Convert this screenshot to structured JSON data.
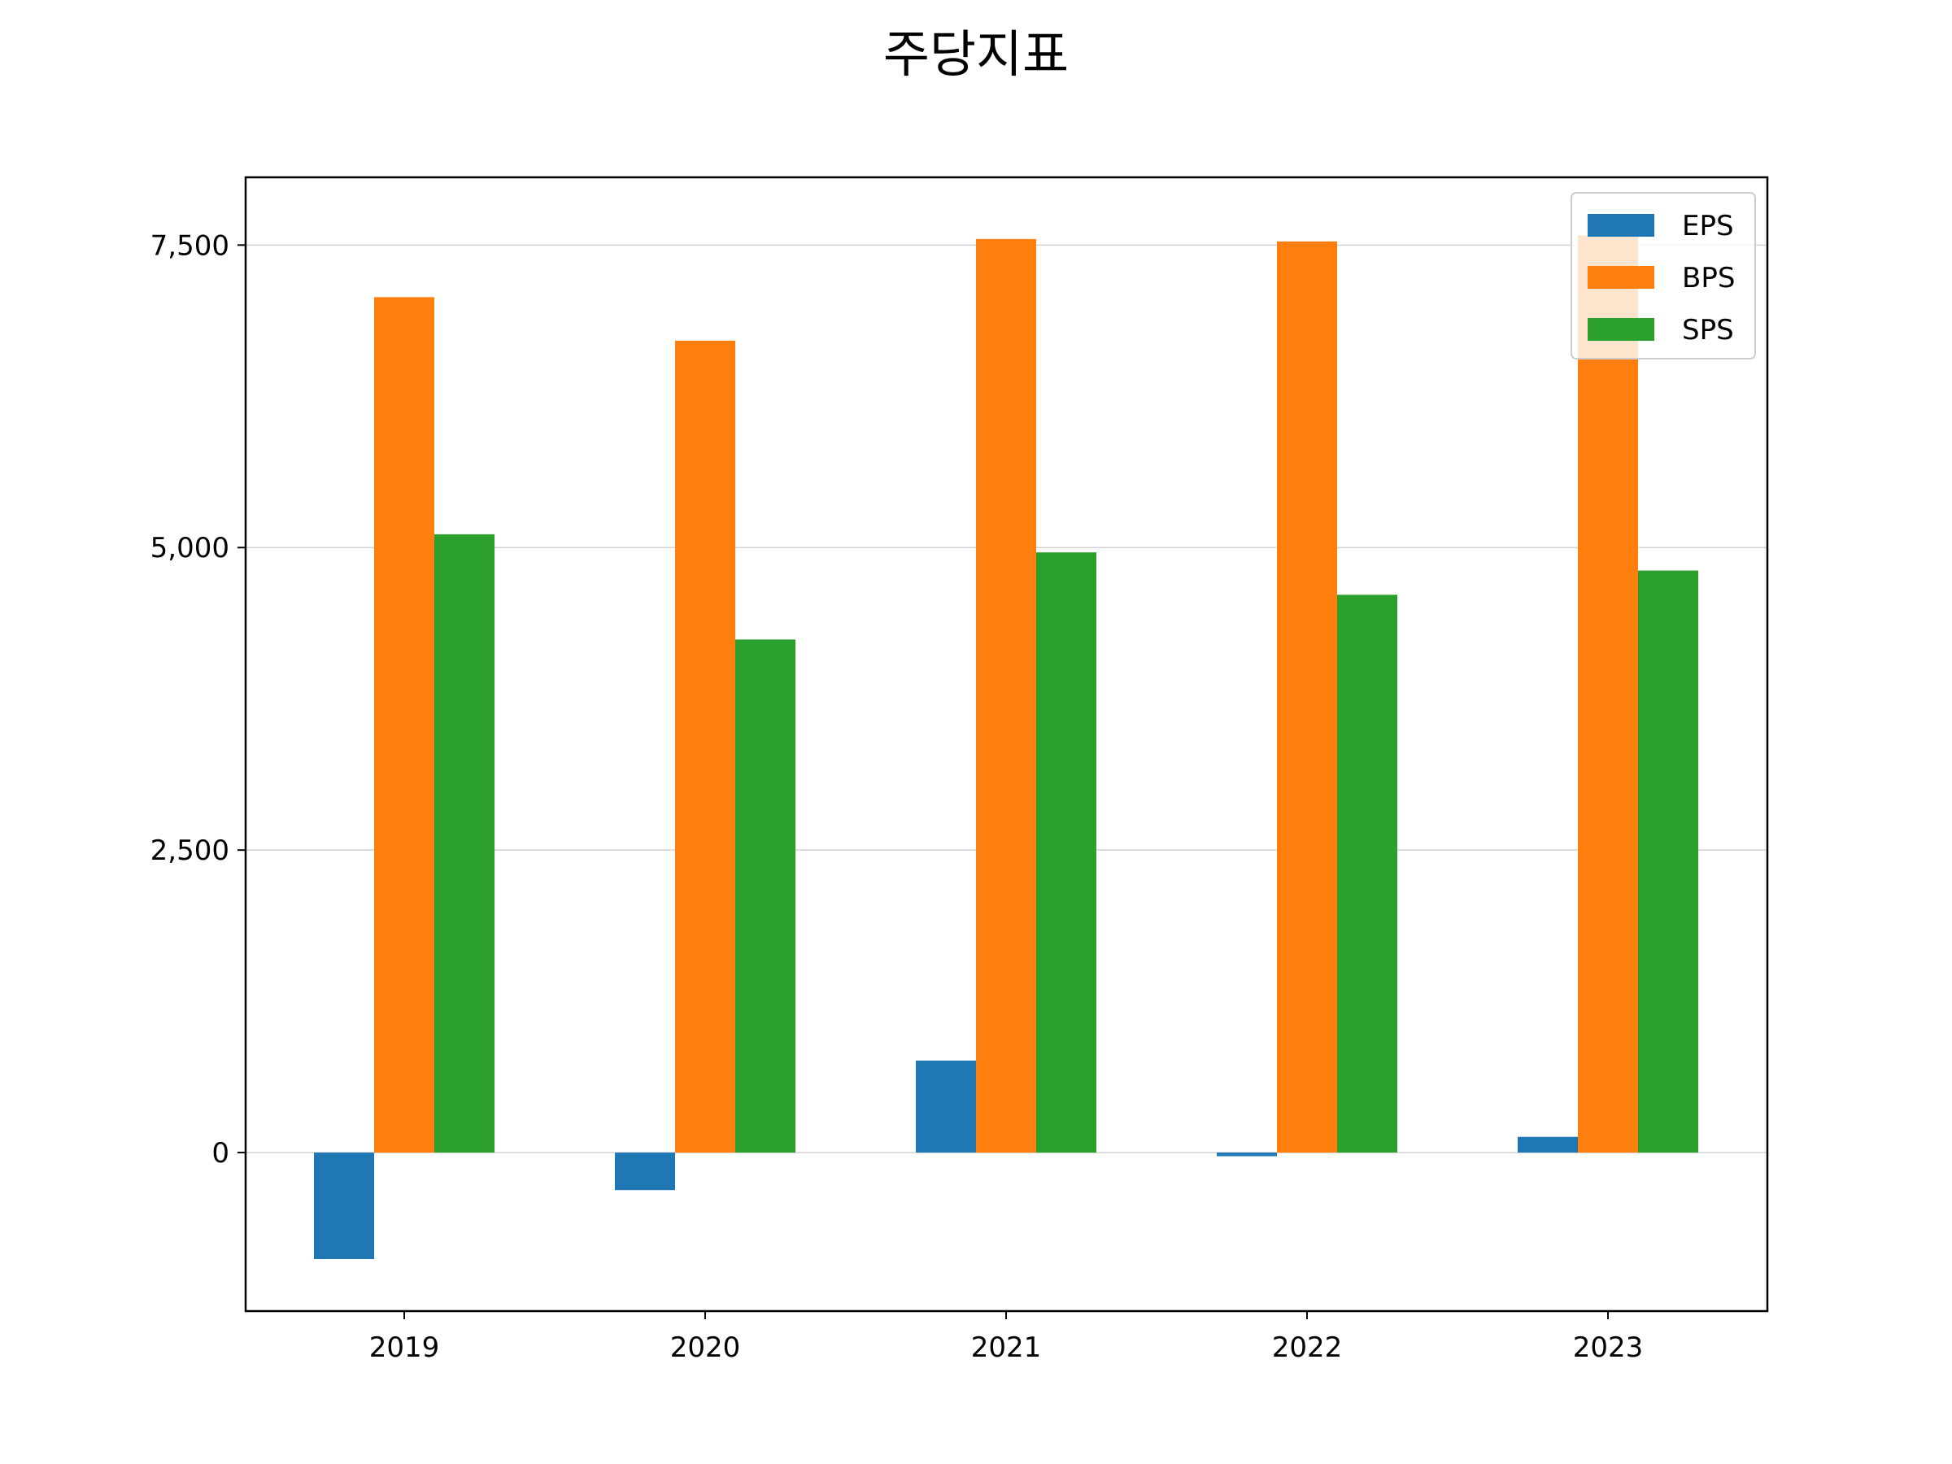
{
  "chart_data": {
    "type": "bar",
    "title": "주당지표",
    "xlabel": "",
    "ylabel": "",
    "categories": [
      "2019",
      "2020",
      "2021",
      "2022",
      "2023"
    ],
    "series": [
      {
        "name": "EPS",
        "color": "#1f77b4",
        "values": [
          -880,
          -310,
          760,
          -30,
          130
        ]
      },
      {
        "name": "BPS",
        "color": "#ff7f0e",
        "values": [
          7070,
          6710,
          7550,
          7530,
          7580
        ]
      },
      {
        "name": "SPS",
        "color": "#2ca02c",
        "values": [
          5110,
          4240,
          4960,
          4610,
          4810
        ]
      }
    ],
    "ylim": [
      -1310,
      8060
    ],
    "yticks": [
      0,
      2500,
      5000,
      7500
    ],
    "ytick_labels": [
      "0",
      "2,500",
      "5,000",
      "7,500"
    ],
    "grid": "y",
    "legend_position": "top-right"
  }
}
